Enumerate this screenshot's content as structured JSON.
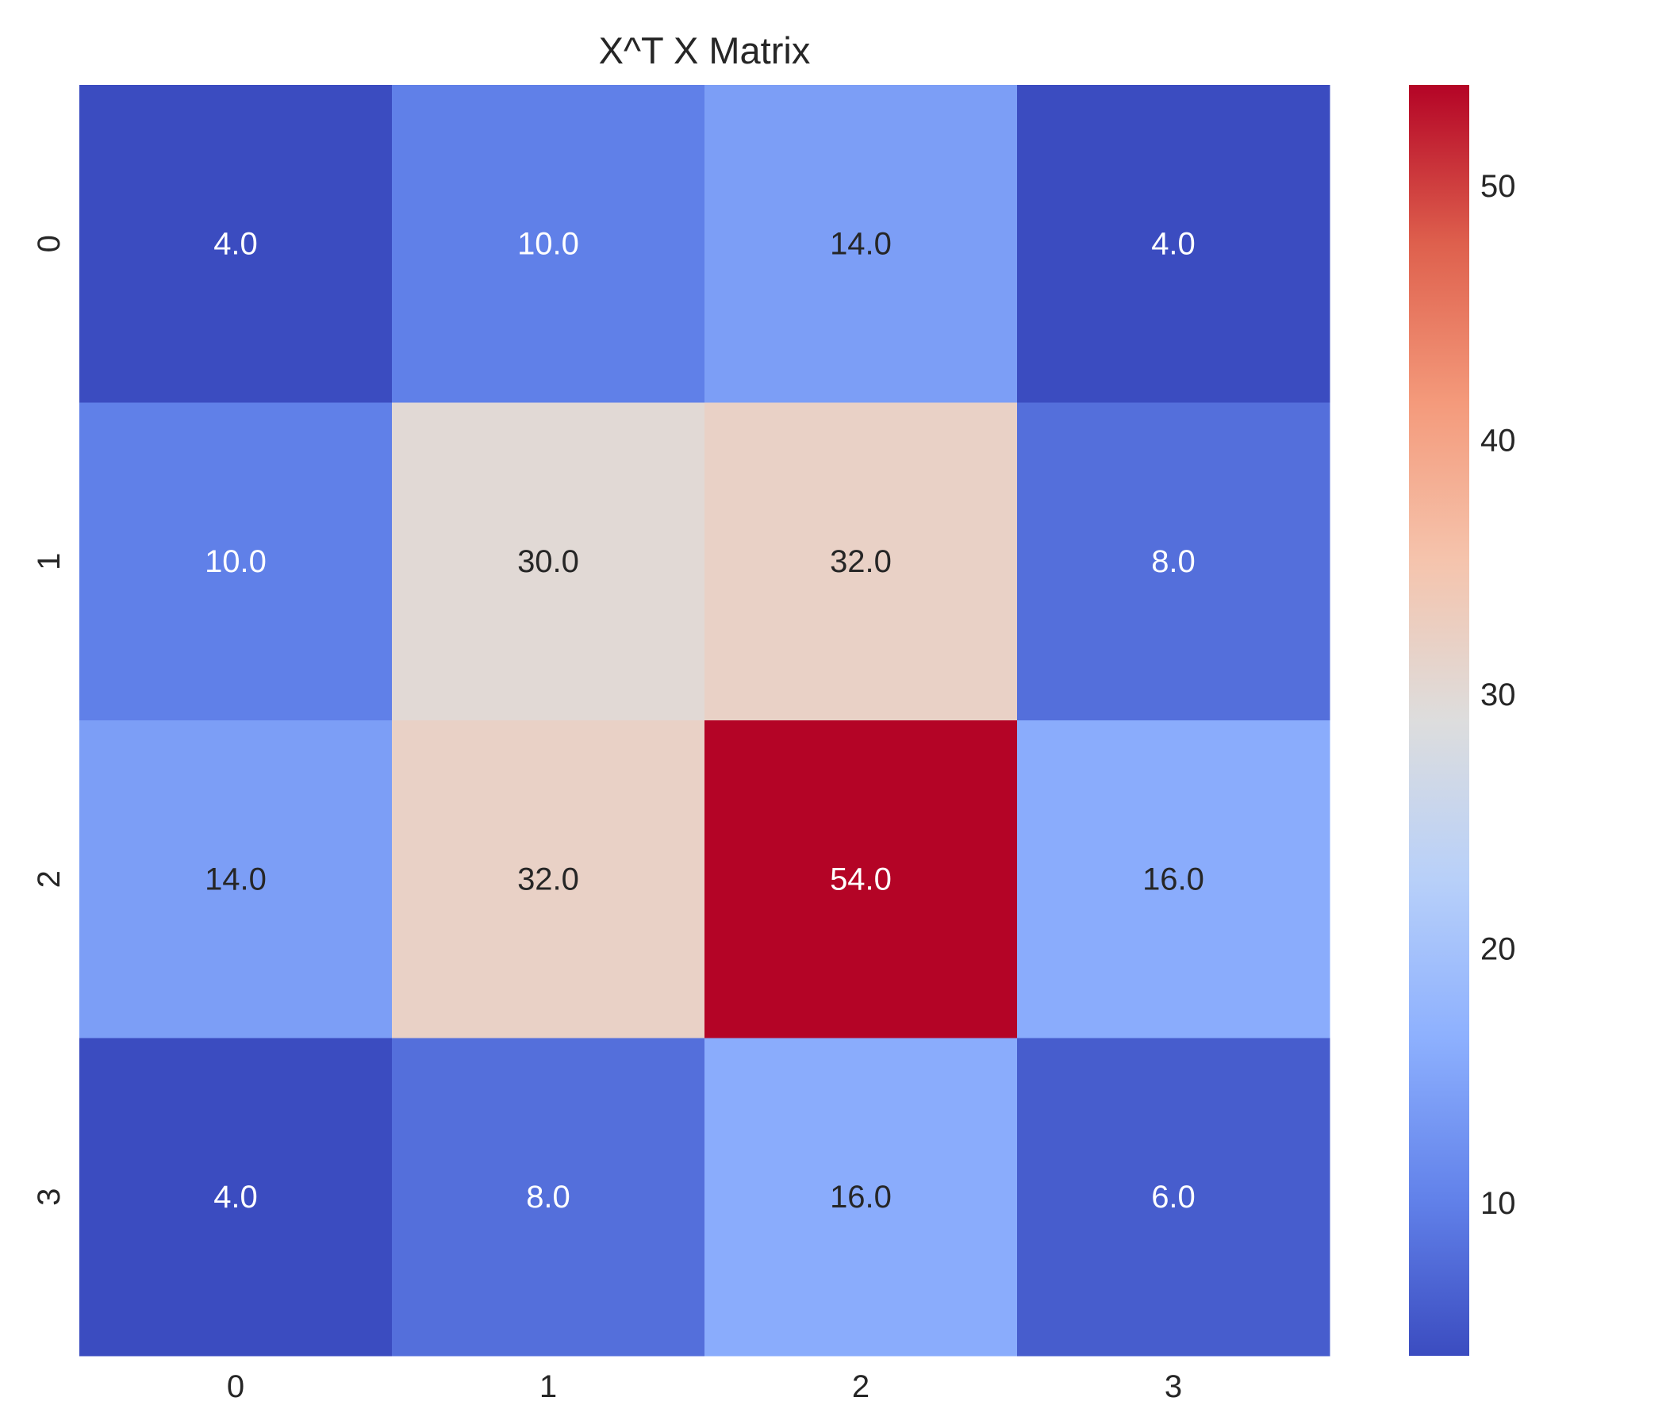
{
  "chart_data": {
    "type": "heatmap",
    "title": "X^T X Matrix",
    "x_categories": [
      "0",
      "1",
      "2",
      "3"
    ],
    "y_categories": [
      "0",
      "1",
      "2",
      "3"
    ],
    "values": [
      [
        4.0,
        10.0,
        14.0,
        4.0
      ],
      [
        10.0,
        30.0,
        32.0,
        8.0
      ],
      [
        14.0,
        32.0,
        54.0,
        16.0
      ],
      [
        4.0,
        8.0,
        16.0,
        6.0
      ]
    ],
    "cell_labels": [
      [
        "4.0",
        "10.0",
        "14.0",
        "4.0"
      ],
      [
        "10.0",
        "30.0",
        "32.0",
        "8.0"
      ],
      [
        "14.0",
        "32.0",
        "54.0",
        "16.0"
      ],
      [
        "4.0",
        "8.0",
        "16.0",
        "6.0"
      ]
    ],
    "colormap": "coolwarm",
    "vmin": 4.0,
    "vmax": 54.0,
    "colorbar_ticks": [
      10,
      20,
      30,
      40,
      50
    ],
    "colorbar_tick_labels": [
      "10",
      "20",
      "30",
      "40",
      "50"
    ],
    "grid": false
  }
}
